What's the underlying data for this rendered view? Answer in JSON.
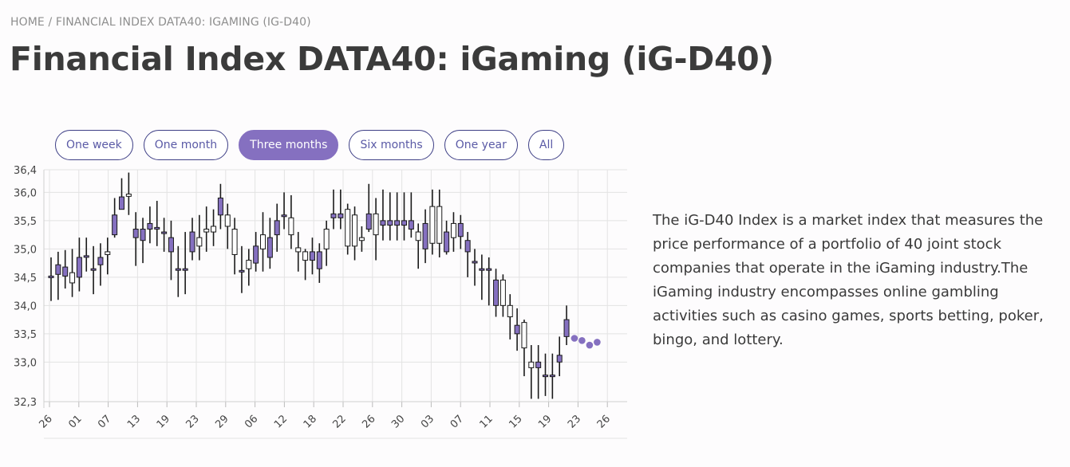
{
  "breadcrumb": {
    "home": "HOME",
    "separator": "/",
    "current": "FINANCIAL INDEX DATA40: IGAMING (IG-D40)"
  },
  "page_title": "Financial Index DATA40: iGaming (iG-D40)",
  "range_buttons": [
    {
      "label": "One week",
      "active": false
    },
    {
      "label": "One month",
      "active": false
    },
    {
      "label": "Three months",
      "active": true
    },
    {
      "label": "Six months",
      "active": false
    },
    {
      "label": "One year",
      "active": false
    },
    {
      "label": "All",
      "active": false
    }
  ],
  "description": "The iG-D40 Index is a market index that measures the price performance of a portfolio of 40 joint stock companies that operate in the iGaming industry.The iGaming industry encompasses online gambling activities such as casino games, sports betting, poker, bingo, and lottery.",
  "colors": {
    "accent": "#8570c0",
    "button_border": "#3e3f86",
    "down_fill": "#8570c0",
    "up_fill": "#ffffff",
    "grid": "#e3e3e3"
  },
  "chart_data": {
    "type": "candlestick",
    "ylim": [
      32.3,
      36.4
    ],
    "y_ticks": [
      "36,4",
      "36,0",
      "35,5",
      "35,0",
      "34,5",
      "34,0",
      "33,5",
      "33,0",
      "32,3"
    ],
    "y_tick_values": [
      36.4,
      36.0,
      35.5,
      35.0,
      34.5,
      34.0,
      33.5,
      33.0,
      32.3
    ],
    "x_tick_labels": [
      "26",
      "01",
      "07",
      "13",
      "19",
      "23",
      "29",
      "06",
      "12",
      "18",
      "22",
      "26",
      "30",
      "03",
      "07",
      "11",
      "15",
      "19",
      "23",
      "26"
    ],
    "grid": true,
    "candles": [
      {
        "o": 34.52,
        "h": 34.85,
        "l": 34.08,
        "c": 34.52
      },
      {
        "o": 34.72,
        "h": 34.95,
        "l": 34.1,
        "c": 34.55
      },
      {
        "o": 34.68,
        "h": 34.98,
        "l": 34.3,
        "c": 34.52
      },
      {
        "o": 34.4,
        "h": 35.0,
        "l": 34.15,
        "c": 34.58
      },
      {
        "o": 34.85,
        "h": 35.2,
        "l": 34.25,
        "c": 34.5
      },
      {
        "o": 34.88,
        "h": 35.2,
        "l": 34.6,
        "c": 34.88
      },
      {
        "o": 34.65,
        "h": 35.05,
        "l": 34.2,
        "c": 34.65
      },
      {
        "o": 34.85,
        "h": 35.1,
        "l": 34.35,
        "c": 34.72
      },
      {
        "o": 34.9,
        "h": 35.2,
        "l": 34.55,
        "c": 34.95
      },
      {
        "o": 35.6,
        "h": 35.9,
        "l": 35.2,
        "c": 35.25
      },
      {
        "o": 35.92,
        "h": 36.25,
        "l": 35.7,
        "c": 35.7
      },
      {
        "o": 35.93,
        "h": 36.35,
        "l": 35.6,
        "c": 35.97
      },
      {
        "o": 35.35,
        "h": 35.65,
        "l": 34.7,
        "c": 35.2
      },
      {
        "o": 35.35,
        "h": 35.55,
        "l": 34.75,
        "c": 35.15
      },
      {
        "o": 35.45,
        "h": 35.75,
        "l": 35.1,
        "c": 35.35
      },
      {
        "o": 35.38,
        "h": 35.85,
        "l": 35.05,
        "c": 35.35
      },
      {
        "o": 35.3,
        "h": 35.55,
        "l": 34.95,
        "c": 35.3
      },
      {
        "o": 35.2,
        "h": 35.5,
        "l": 34.45,
        "c": 34.95
      },
      {
        "o": 34.65,
        "h": 35.05,
        "l": 34.15,
        "c": 34.65
      },
      {
        "o": 34.65,
        "h": 35.3,
        "l": 34.2,
        "c": 34.65
      },
      {
        "o": 35.3,
        "h": 35.55,
        "l": 34.8,
        "c": 34.95
      },
      {
        "o": 35.05,
        "h": 35.6,
        "l": 34.8,
        "c": 35.2
      },
      {
        "o": 35.3,
        "h": 35.75,
        "l": 34.95,
        "c": 35.35
      },
      {
        "o": 35.3,
        "h": 35.7,
        "l": 35.05,
        "c": 35.4
      },
      {
        "o": 35.9,
        "h": 36.15,
        "l": 35.35,
        "c": 35.6
      },
      {
        "o": 35.4,
        "h": 35.8,
        "l": 35.0,
        "c": 35.6
      },
      {
        "o": 34.9,
        "h": 35.55,
        "l": 34.55,
        "c": 35.35
      },
      {
        "o": 34.62,
        "h": 35.05,
        "l": 34.22,
        "c": 34.62
      },
      {
        "o": 34.65,
        "h": 35.0,
        "l": 34.35,
        "c": 34.8
      },
      {
        "o": 35.05,
        "h": 35.3,
        "l": 34.6,
        "c": 34.75
      },
      {
        "o": 35.0,
        "h": 35.65,
        "l": 34.6,
        "c": 35.25
      },
      {
        "o": 35.2,
        "h": 35.55,
        "l": 34.65,
        "c": 34.85
      },
      {
        "o": 35.5,
        "h": 35.8,
        "l": 34.95,
        "c": 35.25
      },
      {
        "o": 35.6,
        "h": 36.0,
        "l": 35.35,
        "c": 35.6
      },
      {
        "o": 35.25,
        "h": 35.95,
        "l": 35.0,
        "c": 35.55
      },
      {
        "o": 34.95,
        "h": 35.3,
        "l": 34.6,
        "c": 35.02
      },
      {
        "o": 34.8,
        "h": 35.0,
        "l": 34.45,
        "c": 34.95
      },
      {
        "o": 34.95,
        "h": 35.2,
        "l": 34.55,
        "c": 34.8
      },
      {
        "o": 34.95,
        "h": 35.1,
        "l": 34.4,
        "c": 34.65
      },
      {
        "o": 35.0,
        "h": 35.5,
        "l": 34.7,
        "c": 35.35
      },
      {
        "o": 35.62,
        "h": 36.05,
        "l": 35.35,
        "c": 35.55
      },
      {
        "o": 35.62,
        "h": 36.05,
        "l": 35.35,
        "c": 35.55
      },
      {
        "o": 35.05,
        "h": 35.8,
        "l": 34.9,
        "c": 35.7
      },
      {
        "o": 35.05,
        "h": 35.75,
        "l": 34.8,
        "c": 35.6
      },
      {
        "o": 35.15,
        "h": 35.4,
        "l": 34.95,
        "c": 35.2
      },
      {
        "o": 35.62,
        "h": 36.15,
        "l": 35.3,
        "c": 35.35
      },
      {
        "o": 35.25,
        "h": 35.9,
        "l": 34.8,
        "c": 35.62
      },
      {
        "o": 35.5,
        "h": 36.05,
        "l": 35.15,
        "c": 35.42
      },
      {
        "o": 35.5,
        "h": 36.0,
        "l": 35.15,
        "c": 35.42
      },
      {
        "o": 35.5,
        "h": 36.0,
        "l": 35.15,
        "c": 35.42
      },
      {
        "o": 35.5,
        "h": 36.0,
        "l": 35.15,
        "c": 35.42
      },
      {
        "o": 35.5,
        "h": 36.0,
        "l": 35.2,
        "c": 35.35
      },
      {
        "o": 35.15,
        "h": 35.45,
        "l": 34.65,
        "c": 35.3
      },
      {
        "o": 35.45,
        "h": 35.7,
        "l": 34.75,
        "c": 35.0
      },
      {
        "o": 35.1,
        "h": 36.05,
        "l": 34.9,
        "c": 35.75
      },
      {
        "o": 35.1,
        "h": 36.05,
        "l": 34.85,
        "c": 35.75
      },
      {
        "o": 35.3,
        "h": 35.5,
        "l": 34.9,
        "c": 34.95
      },
      {
        "o": 35.2,
        "h": 35.65,
        "l": 34.95,
        "c": 35.45
      },
      {
        "o": 35.45,
        "h": 35.6,
        "l": 35.0,
        "c": 35.22
      },
      {
        "o": 35.15,
        "h": 35.3,
        "l": 34.5,
        "c": 34.95
      },
      {
        "o": 34.78,
        "h": 35.0,
        "l": 34.35,
        "c": 34.78
      },
      {
        "o": 34.65,
        "h": 34.9,
        "l": 34.1,
        "c": 34.65
      },
      {
        "o": 34.65,
        "h": 34.85,
        "l": 34.0,
        "c": 34.65
      },
      {
        "o": 34.45,
        "h": 34.65,
        "l": 33.8,
        "c": 34.0
      },
      {
        "o": 34.0,
        "h": 34.55,
        "l": 33.8,
        "c": 34.45
      },
      {
        "o": 33.8,
        "h": 34.2,
        "l": 33.4,
        "c": 34.0
      },
      {
        "o": 33.65,
        "h": 33.95,
        "l": 33.2,
        "c": 33.5
      },
      {
        "o": 33.25,
        "h": 33.75,
        "l": 32.75,
        "c": 33.7
      },
      {
        "o": 32.9,
        "h": 33.3,
        "l": 32.35,
        "c": 33.0
      },
      {
        "o": 33.0,
        "h": 33.3,
        "l": 32.35,
        "c": 32.9
      },
      {
        "o": 32.77,
        "h": 33.15,
        "l": 32.4,
        "c": 32.77
      },
      {
        "o": 32.77,
        "h": 33.15,
        "l": 32.35,
        "c": 32.77
      },
      {
        "o": 33.12,
        "h": 33.45,
        "l": 32.75,
        "c": 33.0
      },
      {
        "o": 33.75,
        "h": 34.0,
        "l": 33.3,
        "c": 33.45
      }
    ],
    "projection": [
      33.42,
      33.38,
      33.3,
      33.35
    ]
  }
}
